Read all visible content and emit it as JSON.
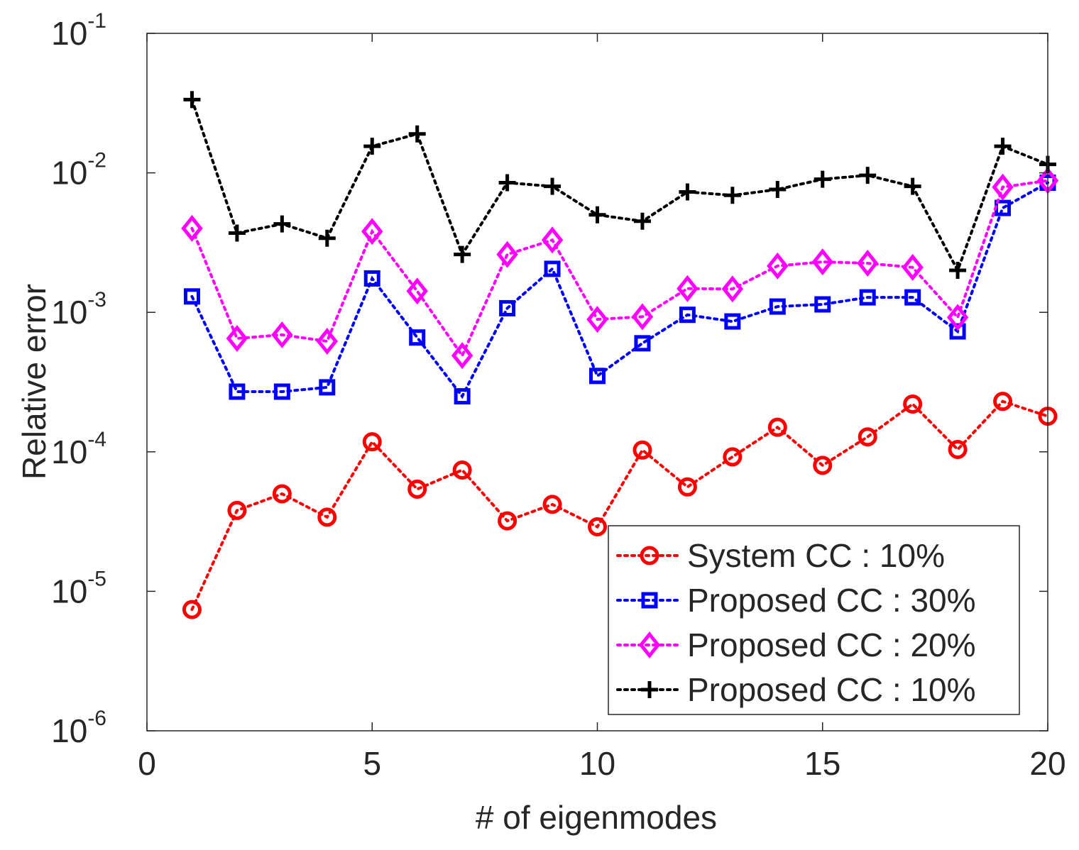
{
  "chart_data": {
    "type": "line",
    "title": "",
    "xlabel": "# of eigenmodes",
    "ylabel": "Relative error",
    "yscale": "log",
    "xlim": [
      0,
      20
    ],
    "ylim": [
      1e-06,
      0.1
    ],
    "xticks": [
      0,
      5,
      10,
      15,
      20
    ],
    "xtick_labels": [
      "0",
      "5",
      "10",
      "15",
      "20"
    ],
    "ytick_exponents": [
      -6,
      -5,
      -4,
      -3,
      -2,
      -1
    ],
    "ytick_base": "10",
    "ytick_sups": [
      "-6",
      "-5",
      "-4",
      "-3",
      "-2",
      "-1"
    ],
    "grid": false,
    "legend_position": "bottom-right",
    "x": [
      1,
      2,
      3,
      4,
      5,
      6,
      7,
      8,
      9,
      10,
      11,
      12,
      13,
      14,
      15,
      16,
      17,
      18,
      19,
      20
    ],
    "series": [
      {
        "name": "System CC : 10%",
        "color": "#ff0000",
        "marker": "circle",
        "values": [
          7.4e-06,
          3.8e-05,
          5e-05,
          3.4e-05,
          0.000118,
          5.4e-05,
          7.4e-05,
          3.2e-05,
          4.2e-05,
          2.9e-05,
          0.000103,
          5.6e-05,
          9.2e-05,
          0.00015,
          8e-05,
          0.000128,
          0.00022,
          0.000104,
          0.00023,
          0.00018
        ]
      },
      {
        "name": "Proposed CC : 30%",
        "color": "#0000ff",
        "marker": "square",
        "values": [
          0.0013,
          0.00027,
          0.00027,
          0.00029,
          0.00175,
          0.00066,
          0.00025,
          0.00107,
          0.00205,
          0.00035,
          0.0006,
          0.00096,
          0.00086,
          0.0011,
          0.00114,
          0.00128,
          0.00128,
          0.00073,
          0.0056,
          0.0085
        ]
      },
      {
        "name": "Proposed CC : 20%",
        "color": "#ff00ff",
        "marker": "diamond",
        "values": [
          0.004,
          0.00065,
          0.00069,
          0.00062,
          0.0038,
          0.00142,
          0.00049,
          0.0026,
          0.0033,
          0.00089,
          0.00093,
          0.00148,
          0.00147,
          0.00215,
          0.0023,
          0.00225,
          0.0021,
          0.00092,
          0.0079,
          0.0088
        ]
      },
      {
        "name": "Proposed CC : 10%",
        "color": "#000000",
        "marker": "plus",
        "values": [
          0.0335,
          0.0037,
          0.0043,
          0.0034,
          0.0155,
          0.019,
          0.0026,
          0.0085,
          0.008,
          0.005,
          0.0045,
          0.0073,
          0.0069,
          0.0076,
          0.009,
          0.0096,
          0.008,
          0.002,
          0.0155,
          0.0115
        ]
      }
    ]
  }
}
